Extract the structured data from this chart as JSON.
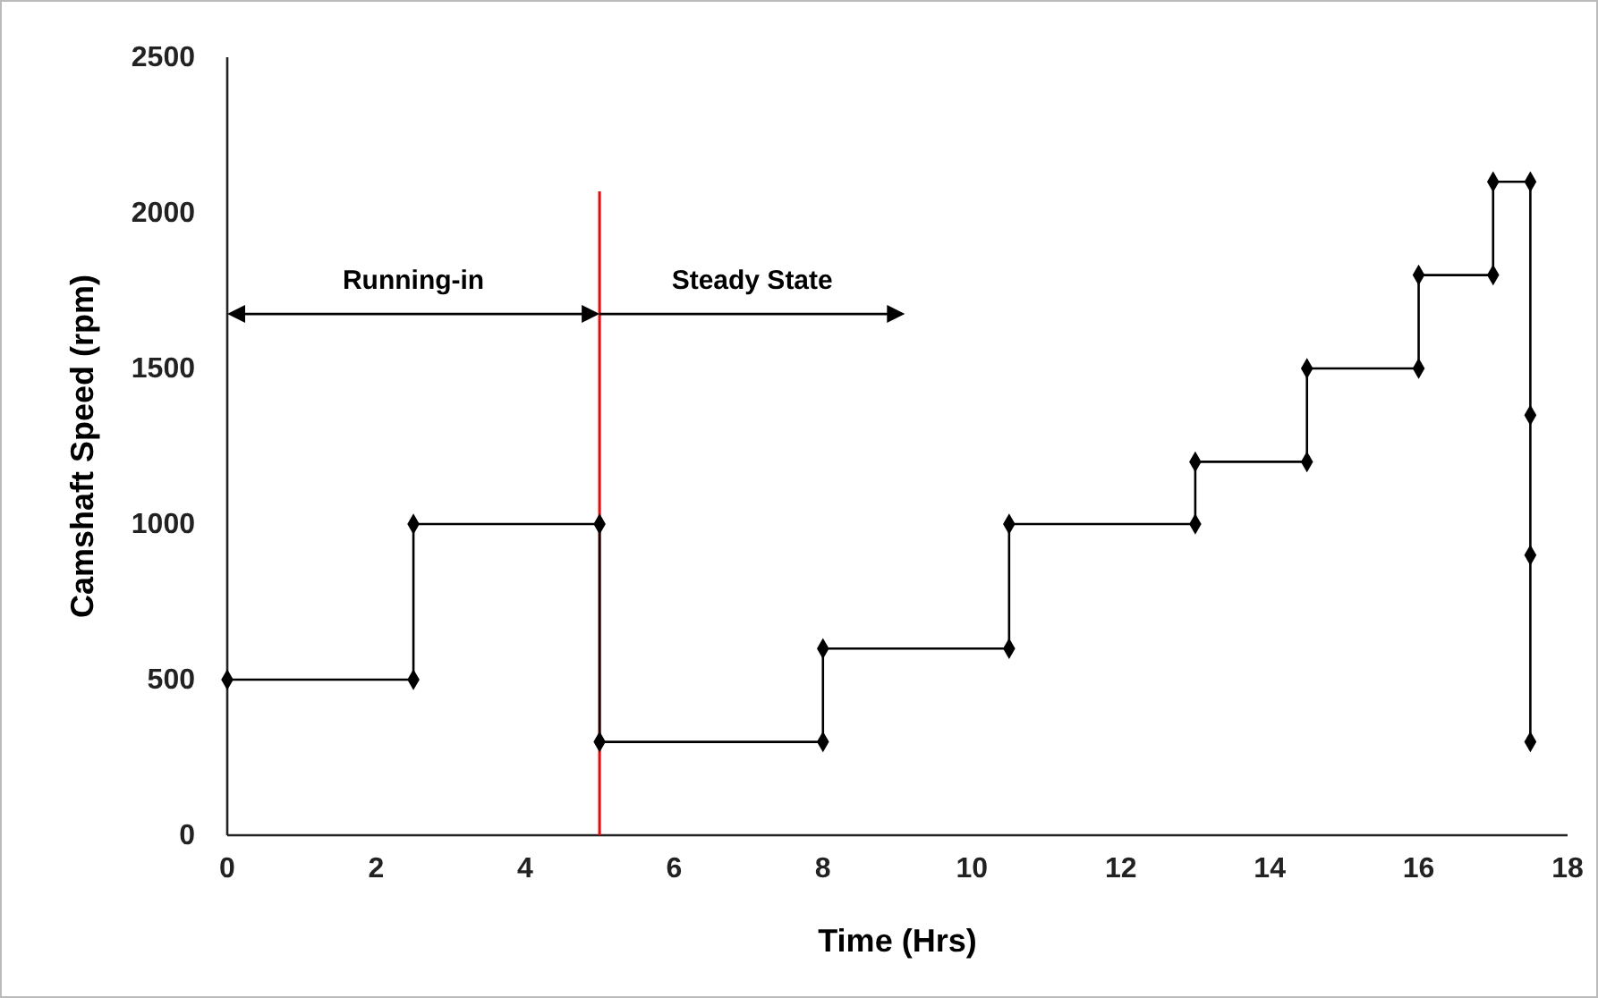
{
  "chart_data": {
    "type": "line",
    "xlabel": "Time (Hrs)",
    "ylabel": "Camshaft  Speed (rpm)",
    "xlim": [
      0,
      18
    ],
    "xticks": [
      0,
      2,
      4,
      6,
      8,
      10,
      12,
      14,
      16,
      18
    ],
    "ylim": [
      0,
      2500
    ],
    "yticks": [
      0,
      500,
      1000,
      1500,
      2000,
      2500
    ],
    "grid": false,
    "marker": "diamond",
    "line_style": "solid",
    "series": [
      {
        "color": "#000000",
        "x": [
          0,
          2.5,
          2.5,
          5,
          5,
          8,
          8,
          10.5,
          10.5,
          13,
          13,
          14.5,
          14.5,
          16,
          16,
          17,
          17,
          17.5,
          17.5,
          17.5,
          17.5
        ],
        "values": [
          500,
          500,
          1000,
          1000,
          300,
          300,
          600,
          600,
          1000,
          1000,
          1200,
          1200,
          1500,
          1500,
          1800,
          1800,
          2100,
          2100,
          1350,
          900,
          300
        ]
      }
    ],
    "ref_lines": [
      {
        "axis": "x",
        "value": 5,
        "color": "#ff0000",
        "line_style": "solid"
      }
    ],
    "annotations": [
      "Running-in",
      "Steady State"
    ]
  }
}
